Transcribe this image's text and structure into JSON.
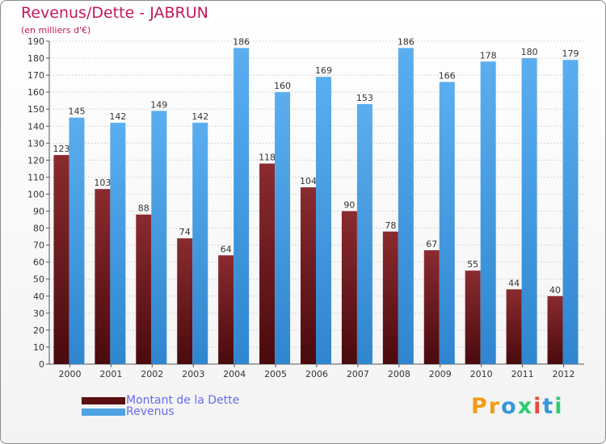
{
  "chart_data": {
    "type": "bar",
    "title": "Revenus/Dette - JABRUN",
    "subtitle": "(en milliers d'€)",
    "categories": [
      "2000",
      "2001",
      "2002",
      "2003",
      "2004",
      "2005",
      "2006",
      "2007",
      "2008",
      "2009",
      "2010",
      "2011",
      "2012"
    ],
    "series": [
      {
        "name": "Montant de la Dette",
        "color": "#7a1f24",
        "values": [
          123,
          103,
          88,
          74,
          64,
          118,
          104,
          90,
          78,
          67,
          55,
          44,
          40
        ]
      },
      {
        "name": "Revenus",
        "color": "#4fa3e3",
        "values": [
          145,
          142,
          149,
          142,
          186,
          160,
          169,
          153,
          186,
          166,
          178,
          180,
          179
        ]
      }
    ],
    "ylim": [
      0,
      190
    ],
    "yticks": [
      0,
      10,
      20,
      30,
      40,
      50,
      60,
      70,
      80,
      90,
      100,
      110,
      120,
      130,
      140,
      150,
      160,
      170,
      180,
      190
    ],
    "grid": true,
    "legend_position": "bottom-left"
  },
  "logo_text": "Proxiti"
}
